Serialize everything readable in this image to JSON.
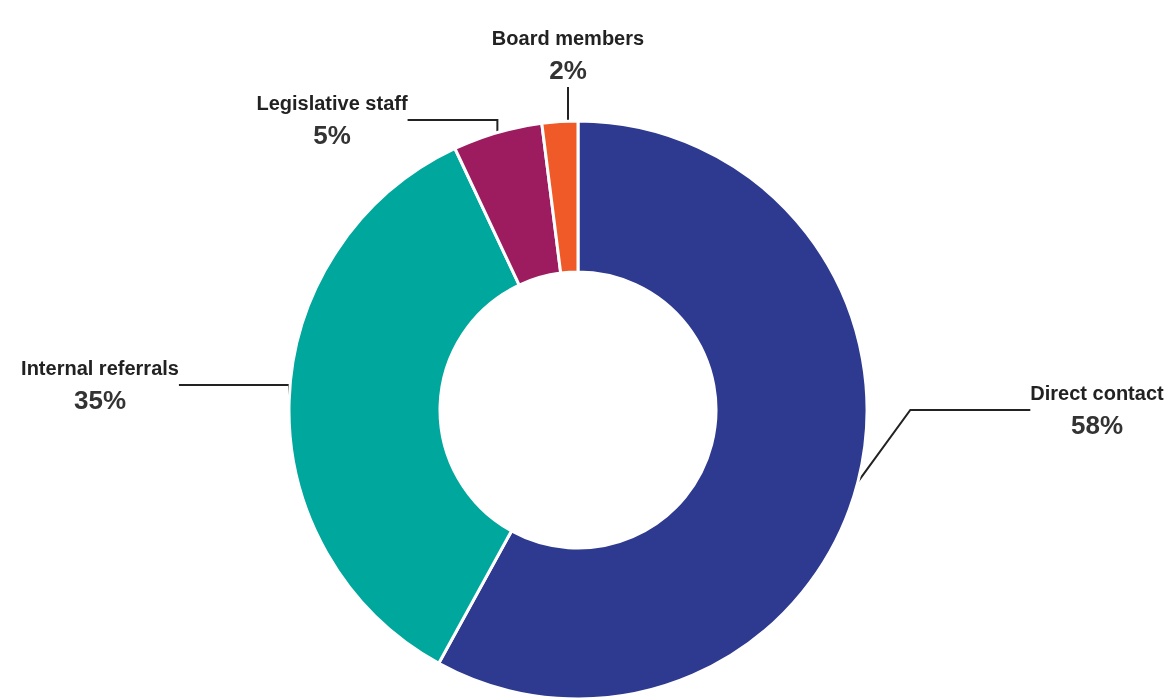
{
  "chart_data": {
    "type": "donut",
    "categories": [
      "Direct contact",
      "Internal referrals",
      "Legislative staff",
      "Board members"
    ],
    "values": [
      58,
      35,
      5,
      2
    ],
    "value_labels": [
      "58%",
      "35%",
      "5%",
      "2%"
    ],
    "colors": [
      "#2d3a8f",
      "#00a79d",
      "#9c1c5f",
      "#f05a28"
    ]
  }
}
